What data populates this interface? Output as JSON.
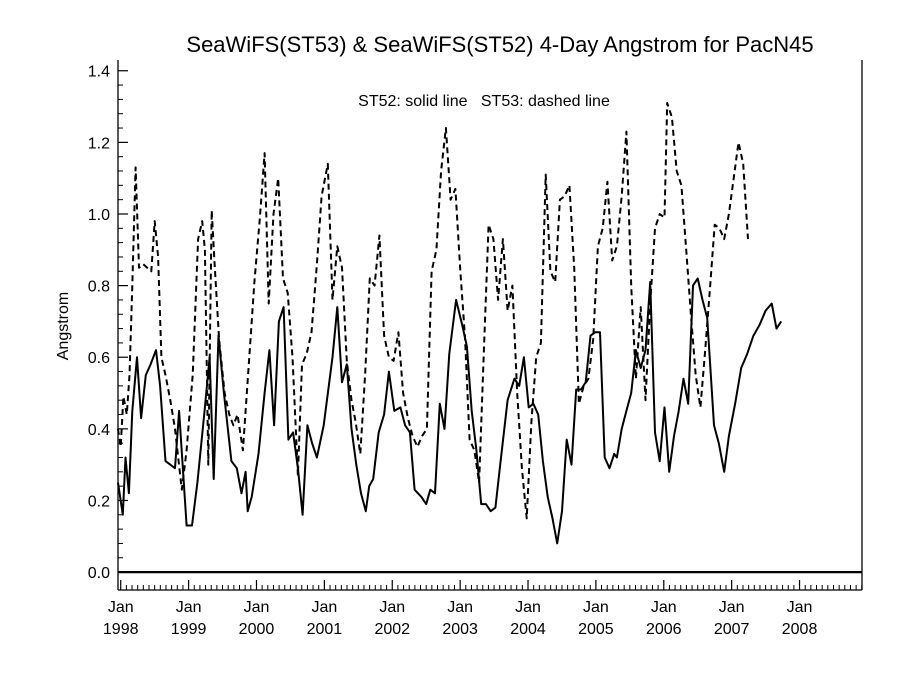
{
  "chart_data": {
    "type": "line",
    "title": "SeaWiFS(ST53) & SeaWiFS(ST52) 4-Day Angstrom for PacN45",
    "ylabel": "Angstrom",
    "xlabel": "",
    "annotation": "ST52: solid line   ST53: dashed line",
    "ylim": [
      -0.05,
      1.43
    ],
    "xlim": [
      1997.96,
      2008.92
    ],
    "yticks": [
      {
        "value": 0.0,
        "label": "0.0"
      },
      {
        "value": 0.2,
        "label": "0.2"
      },
      {
        "value": 0.4,
        "label": "0.4"
      },
      {
        "value": 0.6,
        "label": "0.6"
      },
      {
        "value": 0.8,
        "label": "0.8"
      },
      {
        "value": 1.0,
        "label": "1.0"
      },
      {
        "value": 1.2,
        "label": "1.2"
      },
      {
        "value": 1.4,
        "label": "1.4"
      }
    ],
    "xticks": [
      {
        "value": 1998,
        "month": "Jan",
        "year": "1998"
      },
      {
        "value": 1999,
        "month": "Jan",
        "year": "1999"
      },
      {
        "value": 2000,
        "month": "Jan",
        "year": "2000"
      },
      {
        "value": 2001,
        "month": "Jan",
        "year": "2001"
      },
      {
        "value": 2002,
        "month": "Jan",
        "year": "2002"
      },
      {
        "value": 2003,
        "month": "Jan",
        "year": "2003"
      },
      {
        "value": 2004,
        "month": "Jan",
        "year": "2004"
      },
      {
        "value": 2005,
        "month": "Jan",
        "year": "2005"
      },
      {
        "value": 2006,
        "month": "Jan",
        "year": "2006"
      },
      {
        "value": 2007,
        "month": "Jan",
        "year": "2007"
      },
      {
        "value": 2008,
        "month": "Jan",
        "year": "2008"
      }
    ],
    "reference_line": 0.0,
    "series": [
      {
        "name": "ST52",
        "style": "solid",
        "color": "#000000",
        "points": [
          [
            1997.96,
            0.25
          ],
          [
            1998.03,
            0.16
          ],
          [
            1998.07,
            0.32
          ],
          [
            1998.12,
            0.22
          ],
          [
            1998.17,
            0.45
          ],
          [
            1998.24,
            0.6
          ],
          [
            1998.3,
            0.43
          ],
          [
            1998.37,
            0.55
          ],
          [
            1998.44,
            0.58
          ],
          [
            1998.52,
            0.62
          ],
          [
            1998.58,
            0.52
          ],
          [
            1998.66,
            0.31
          ],
          [
            1998.8,
            0.29
          ],
          [
            1998.86,
            0.45
          ],
          [
            1998.97,
            0.13
          ],
          [
            1999.05,
            0.13
          ],
          [
            1999.13,
            0.25
          ],
          [
            1999.24,
            0.46
          ],
          [
            1999.31,
            0.6
          ],
          [
            1999.37,
            0.26
          ],
          [
            1999.44,
            0.66
          ],
          [
            1999.52,
            0.5
          ],
          [
            1999.63,
            0.31
          ],
          [
            1999.71,
            0.29
          ],
          [
            1999.78,
            0.22
          ],
          [
            1999.84,
            0.28
          ],
          [
            1999.87,
            0.17
          ],
          [
            1999.93,
            0.21
          ],
          [
            2000.03,
            0.33
          ],
          [
            2000.12,
            0.5
          ],
          [
            2000.19,
            0.62
          ],
          [
            2000.26,
            0.41
          ],
          [
            2000.33,
            0.7
          ],
          [
            2000.4,
            0.74
          ],
          [
            2000.47,
            0.37
          ],
          [
            2000.54,
            0.39
          ],
          [
            2000.61,
            0.29
          ],
          [
            2000.68,
            0.16
          ],
          [
            2000.75,
            0.41
          ],
          [
            2000.82,
            0.36
          ],
          [
            2000.89,
            0.32
          ],
          [
            2000.99,
            0.41
          ],
          [
            2001.12,
            0.6
          ],
          [
            2001.19,
            0.74
          ],
          [
            2001.26,
            0.53
          ],
          [
            2001.33,
            0.58
          ],
          [
            2001.4,
            0.4
          ],
          [
            2001.47,
            0.3
          ],
          [
            2001.54,
            0.22
          ],
          [
            2001.61,
            0.17
          ],
          [
            2001.66,
            0.24
          ],
          [
            2001.72,
            0.26
          ],
          [
            2001.8,
            0.39
          ],
          [
            2001.88,
            0.44
          ],
          [
            2001.95,
            0.56
          ],
          [
            2002.03,
            0.45
          ],
          [
            2002.12,
            0.46
          ],
          [
            2002.19,
            0.41
          ],
          [
            2002.26,
            0.39
          ],
          [
            2002.33,
            0.23
          ],
          [
            2002.43,
            0.21
          ],
          [
            2002.5,
            0.19
          ],
          [
            2002.56,
            0.23
          ],
          [
            2002.63,
            0.22
          ],
          [
            2002.7,
            0.47
          ],
          [
            2002.77,
            0.4
          ],
          [
            2002.84,
            0.61
          ],
          [
            2002.94,
            0.76
          ],
          [
            2003.03,
            0.69
          ],
          [
            2003.1,
            0.63
          ],
          [
            2003.17,
            0.45
          ],
          [
            2003.24,
            0.34
          ],
          [
            2003.31,
            0.19
          ],
          [
            2003.38,
            0.19
          ],
          [
            2003.45,
            0.17
          ],
          [
            2003.52,
            0.18
          ],
          [
            2003.59,
            0.3
          ],
          [
            2003.7,
            0.48
          ],
          [
            2003.8,
            0.54
          ],
          [
            2003.87,
            0.52
          ],
          [
            2003.94,
            0.6
          ],
          [
            2004.01,
            0.46
          ],
          [
            2004.08,
            0.47
          ],
          [
            2004.15,
            0.44
          ],
          [
            2004.22,
            0.31
          ],
          [
            2004.29,
            0.21
          ],
          [
            2004.36,
            0.15
          ],
          [
            2004.43,
            0.08
          ],
          [
            2004.5,
            0.17
          ],
          [
            2004.57,
            0.37
          ],
          [
            2004.64,
            0.3
          ],
          [
            2004.71,
            0.51
          ],
          [
            2004.78,
            0.51
          ],
          [
            2004.85,
            0.53
          ],
          [
            2004.92,
            0.66
          ],
          [
            2004.99,
            0.67
          ],
          [
            2005.06,
            0.67
          ],
          [
            2005.13,
            0.32
          ],
          [
            2005.2,
            0.29
          ],
          [
            2005.27,
            0.33
          ],
          [
            2005.31,
            0.32
          ],
          [
            2005.38,
            0.4
          ],
          [
            2005.45,
            0.45
          ],
          [
            2005.52,
            0.5
          ],
          [
            2005.59,
            0.62
          ],
          [
            2005.66,
            0.57
          ],
          [
            2005.73,
            0.62
          ],
          [
            2005.8,
            0.81
          ],
          [
            2005.87,
            0.39
          ],
          [
            2005.94,
            0.31
          ],
          [
            2006.01,
            0.46
          ],
          [
            2006.08,
            0.28
          ],
          [
            2006.15,
            0.38
          ],
          [
            2006.22,
            0.45
          ],
          [
            2006.29,
            0.54
          ],
          [
            2006.36,
            0.47
          ],
          [
            2006.43,
            0.8
          ],
          [
            2006.5,
            0.82
          ],
          [
            2006.57,
            0.76
          ],
          [
            2006.64,
            0.71
          ],
          [
            2006.74,
            0.41
          ],
          [
            2006.81,
            0.36
          ],
          [
            2006.89,
            0.28
          ],
          [
            2006.96,
            0.38
          ],
          [
            2007.05,
            0.47
          ],
          [
            2007.14,
            0.57
          ],
          [
            2007.23,
            0.61
          ],
          [
            2007.32,
            0.66
          ],
          [
            2007.41,
            0.69
          ],
          [
            2007.5,
            0.73
          ],
          [
            2007.59,
            0.75
          ],
          [
            2007.66,
            0.68
          ],
          [
            2007.73,
            0.7
          ]
        ]
      },
      {
        "name": "ST53",
        "style": "dashed",
        "color": "#000000",
        "points": [
          [
            1997.96,
            0.4
          ],
          [
            1998.0,
            0.35
          ],
          [
            1998.04,
            0.49
          ],
          [
            1998.09,
            0.44
          ],
          [
            1998.13,
            0.55
          ],
          [
            1998.17,
            0.8
          ],
          [
            1998.22,
            1.13
          ],
          [
            1998.27,
            0.85
          ],
          [
            1998.33,
            0.86
          ],
          [
            1998.39,
            0.85
          ],
          [
            1998.45,
            0.84
          ],
          [
            1998.5,
            0.98
          ],
          [
            1998.55,
            0.88
          ],
          [
            1998.6,
            0.6
          ],
          [
            1998.66,
            0.55
          ],
          [
            1998.73,
            0.48
          ],
          [
            1998.8,
            0.4
          ],
          [
            1998.9,
            0.23
          ],
          [
            1998.97,
            0.34
          ],
          [
            1999.06,
            0.55
          ],
          [
            1999.14,
            0.93
          ],
          [
            1999.2,
            0.98
          ],
          [
            1999.24,
            0.9
          ],
          [
            1999.29,
            0.3
          ],
          [
            1999.34,
            1.01
          ],
          [
            1999.38,
            0.87
          ],
          [
            1999.45,
            0.65
          ],
          [
            1999.53,
            0.5
          ],
          [
            1999.6,
            0.44
          ],
          [
            1999.66,
            0.41
          ],
          [
            1999.72,
            0.44
          ],
          [
            1999.8,
            0.34
          ],
          [
            1999.88,
            0.56
          ],
          [
            1999.97,
            0.81
          ],
          [
            2000.05,
            0.99
          ],
          [
            2000.12,
            1.17
          ],
          [
            2000.18,
            0.75
          ],
          [
            2000.25,
            1.0
          ],
          [
            2000.32,
            1.1
          ],
          [
            2000.39,
            0.82
          ],
          [
            2000.46,
            0.78
          ],
          [
            2000.53,
            0.6
          ],
          [
            2000.61,
            0.27
          ],
          [
            2000.67,
            0.58
          ],
          [
            2000.74,
            0.61
          ],
          [
            2000.81,
            0.67
          ],
          [
            2000.89,
            0.86
          ],
          [
            2000.96,
            1.05
          ],
          [
            2001.05,
            1.14
          ],
          [
            2001.12,
            0.76
          ],
          [
            2001.19,
            0.91
          ],
          [
            2001.26,
            0.85
          ],
          [
            2001.33,
            0.59
          ],
          [
            2001.4,
            0.48
          ],
          [
            2001.46,
            0.42
          ],
          [
            2001.53,
            0.33
          ],
          [
            2001.6,
            0.55
          ],
          [
            2001.67,
            0.82
          ],
          [
            2001.74,
            0.8
          ],
          [
            2001.81,
            0.94
          ],
          [
            2001.88,
            0.66
          ],
          [
            2001.95,
            0.6
          ],
          [
            2002.02,
            0.59
          ],
          [
            2002.09,
            0.67
          ],
          [
            2002.16,
            0.5
          ],
          [
            2002.23,
            0.43
          ],
          [
            2002.3,
            0.38
          ],
          [
            2002.37,
            0.35
          ],
          [
            2002.44,
            0.38
          ],
          [
            2002.51,
            0.4
          ],
          [
            2002.58,
            0.84
          ],
          [
            2002.65,
            0.9
          ],
          [
            2002.72,
            1.12
          ],
          [
            2002.79,
            1.24
          ],
          [
            2002.86,
            1.04
          ],
          [
            2002.93,
            1.07
          ],
          [
            2003.0,
            0.85
          ],
          [
            2003.07,
            0.66
          ],
          [
            2003.14,
            0.37
          ],
          [
            2003.21,
            0.34
          ],
          [
            2003.28,
            0.25
          ],
          [
            2003.35,
            0.62
          ],
          [
            2003.42,
            0.97
          ],
          [
            2003.49,
            0.93
          ],
          [
            2003.56,
            0.76
          ],
          [
            2003.63,
            0.93
          ],
          [
            2003.7,
            0.73
          ],
          [
            2003.77,
            0.8
          ],
          [
            2003.84,
            0.5
          ],
          [
            2003.91,
            0.29
          ],
          [
            2003.98,
            0.15
          ],
          [
            2004.05,
            0.42
          ],
          [
            2004.12,
            0.6
          ],
          [
            2004.19,
            0.64
          ],
          [
            2004.26,
            1.11
          ],
          [
            2004.33,
            0.84
          ],
          [
            2004.4,
            0.81
          ],
          [
            2004.47,
            1.04
          ],
          [
            2004.54,
            1.05
          ],
          [
            2004.61,
            1.08
          ],
          [
            2004.68,
            0.85
          ],
          [
            2004.75,
            0.47
          ],
          [
            2004.82,
            0.52
          ],
          [
            2004.89,
            0.54
          ],
          [
            2004.96,
            0.65
          ],
          [
            2005.03,
            0.91
          ],
          [
            2005.1,
            0.96
          ],
          [
            2005.17,
            1.09
          ],
          [
            2005.24,
            0.87
          ],
          [
            2005.31,
            0.91
          ],
          [
            2005.38,
            1.05
          ],
          [
            2005.45,
            1.23
          ],
          [
            2005.52,
            0.8
          ],
          [
            2005.59,
            0.54
          ],
          [
            2005.66,
            0.74
          ],
          [
            2005.73,
            0.48
          ],
          [
            2005.8,
            0.75
          ],
          [
            2005.87,
            0.96
          ],
          [
            2005.94,
            1.0
          ],
          [
            2006.01,
            0.99
          ],
          [
            2006.05,
            1.31
          ],
          [
            2006.12,
            1.27
          ],
          [
            2006.19,
            1.12
          ],
          [
            2006.26,
            1.08
          ],
          [
            2006.33,
            0.9
          ],
          [
            2006.4,
            0.72
          ],
          [
            2006.47,
            0.55
          ],
          [
            2006.54,
            0.46
          ],
          [
            2006.61,
            0.62
          ],
          [
            2006.68,
            0.79
          ],
          [
            2006.75,
            0.97
          ],
          [
            2006.82,
            0.96
          ],
          [
            2006.89,
            0.93
          ],
          [
            2006.96,
            1.0
          ],
          [
            2007.03,
            1.1
          ],
          [
            2007.1,
            1.2
          ],
          [
            2007.17,
            1.14
          ],
          [
            2007.24,
            0.93
          ]
        ]
      }
    ]
  }
}
